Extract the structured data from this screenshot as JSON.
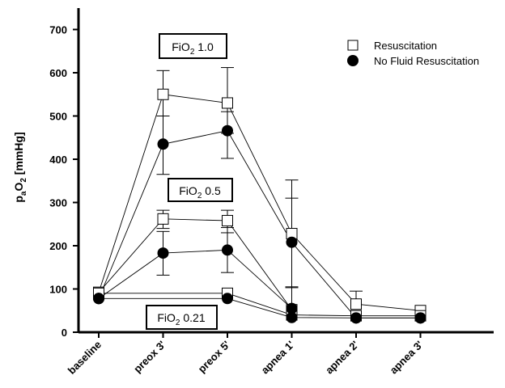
{
  "chart_data": {
    "type": "line",
    "title": "",
    "xlabel": "",
    "ylabel": {
      "main": "p",
      "sub1": "a",
      "mid": "O",
      "sub2": "2",
      "tail": " [mmHg]"
    },
    "categories": [
      "baseline",
      "preox 3'",
      "preox 5'",
      "apnea 1'",
      "apnea 2'",
      "apnea 3'"
    ],
    "ylim": [
      0,
      750
    ],
    "yticks": [
      "0",
      "100",
      "200",
      "300",
      "400",
      "500",
      "600",
      "700"
    ],
    "grid": false,
    "legend_position": "top-right",
    "legend": [
      {
        "label": "Resuscitation",
        "marker": "open-square"
      },
      {
        "label": "No Fluid Resuscitation",
        "marker": "filled-circle"
      }
    ],
    "annotations": [
      {
        "label": "FiO",
        "sub": "2",
        "tail": " 1.0"
      },
      {
        "label": "FiO",
        "sub": "2",
        "tail": " 0.5"
      },
      {
        "label": "FiO",
        "sub": "2",
        "tail": " 0.21"
      }
    ],
    "series": [
      {
        "group": "FiO2 1.0",
        "legend_index": 0,
        "x": [
          0,
          1,
          2,
          3,
          4,
          5
        ],
        "values": [
          92,
          550,
          530,
          228,
          65,
          50
        ],
        "err_upper": [
          null,
          605,
          612,
          352,
          95,
          null
        ],
        "err_lower": [
          null,
          500,
          460,
          null,
          null,
          null
        ]
      },
      {
        "group": "FiO2 1.0",
        "legend_index": 1,
        "x": [
          0,
          1,
          2,
          3,
          4,
          5
        ],
        "values": [
          78,
          435,
          466,
          208,
          33,
          33
        ],
        "err_upper": [
          null,
          500,
          510,
          310,
          null,
          null
        ],
        "err_lower": [
          null,
          365,
          402,
          103,
          null,
          null
        ]
      },
      {
        "group": "FiO2 0.5",
        "legend_index": 0,
        "x": [
          0,
          1,
          2,
          3
        ],
        "values": [
          92,
          262,
          258,
          52
        ],
        "err_upper": [
          null,
          282,
          282,
          null
        ],
        "err_lower": [
          null,
          240,
          230,
          null
        ]
      },
      {
        "group": "FiO2 0.5",
        "legend_index": 1,
        "x": [
          0,
          1,
          2,
          3
        ],
        "values": [
          78,
          183,
          190,
          55
        ],
        "err_upper": [
          null,
          233,
          242,
          105
        ],
        "err_lower": [
          null,
          132,
          138,
          null
        ]
      },
      {
        "group": "FiO2 0.21",
        "legend_index": 0,
        "x": [
          0,
          2,
          3,
          4,
          5
        ],
        "values": [
          90,
          90,
          40,
          38,
          38
        ],
        "err_upper": [
          null,
          null,
          null,
          null,
          null
        ],
        "err_lower": [
          null,
          null,
          null,
          null,
          null
        ]
      },
      {
        "group": "FiO2 0.21",
        "legend_index": 1,
        "x": [
          0,
          2,
          3,
          4,
          5
        ],
        "values": [
          78,
          78,
          34,
          33,
          33
        ],
        "err_upper": [
          null,
          null,
          null,
          null,
          null
        ],
        "err_lower": [
          null,
          null,
          null,
          null,
          null
        ]
      }
    ]
  }
}
